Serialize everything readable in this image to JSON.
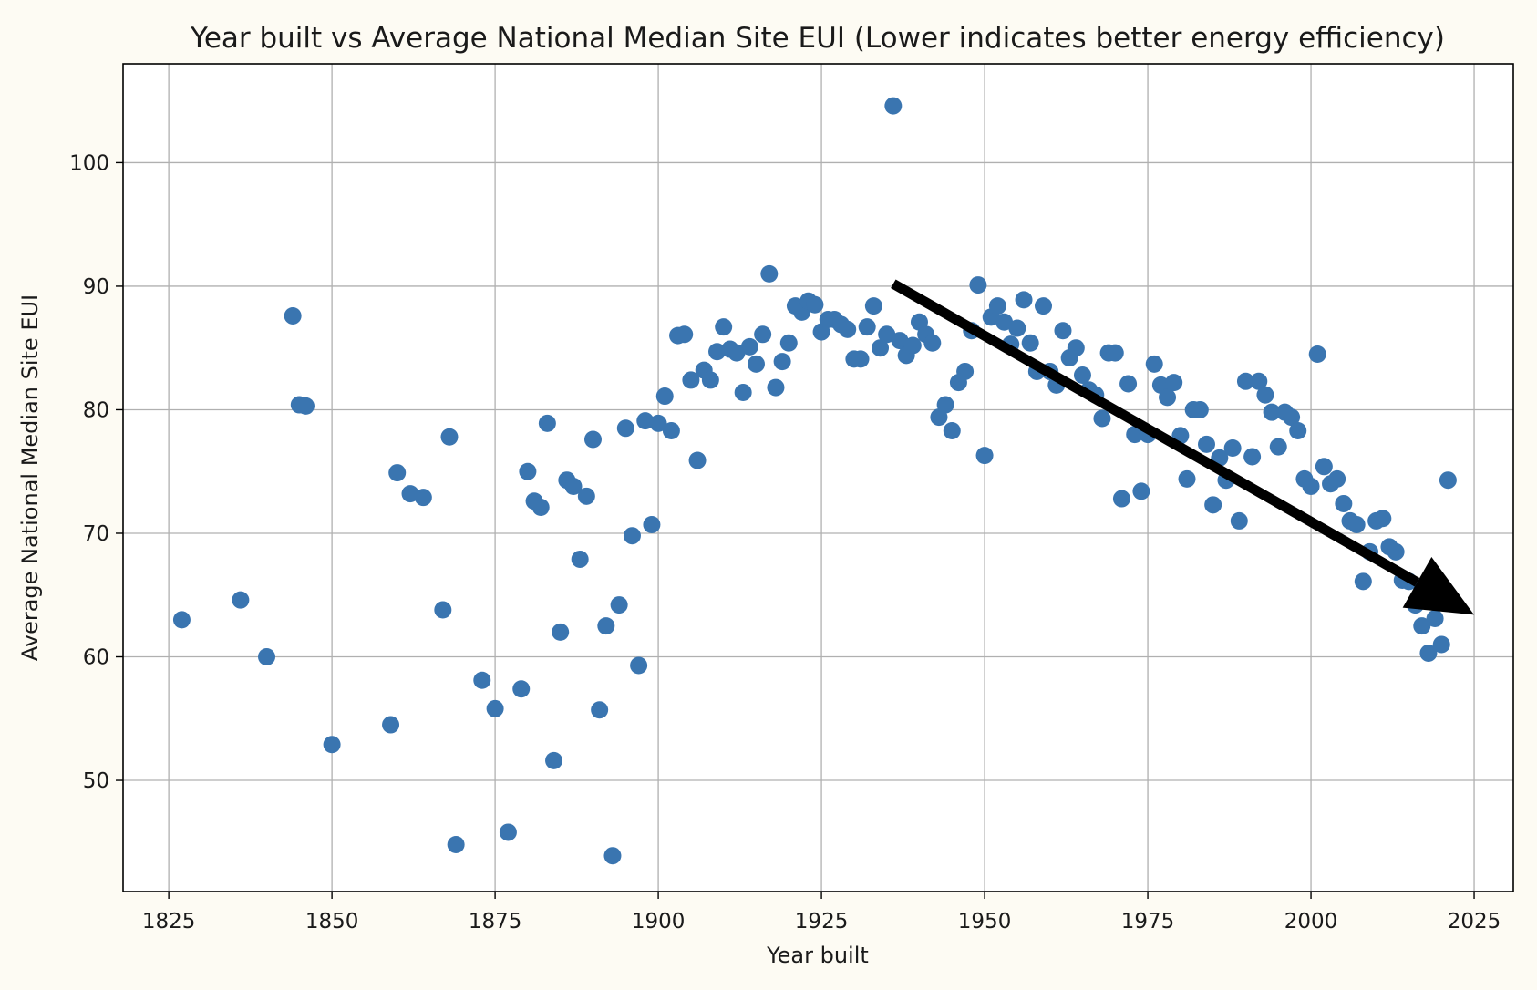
{
  "chart_data": {
    "type": "scatter",
    "title": "Year built vs Average National Median Site EUI (Lower indicates better energy efficiency)",
    "xlabel": "Year built",
    "ylabel": "Average National Median Site EUI",
    "xlim": [
      1818,
      2031
    ],
    "ylim": [
      41,
      108
    ],
    "xticks": [
      1825,
      1850,
      1875,
      1900,
      1925,
      1950,
      1975,
      2000,
      2025
    ],
    "yticks": [
      50,
      60,
      70,
      80,
      90,
      100
    ],
    "grid": true,
    "marker_color": "#3a75b0",
    "annotation": {
      "type": "trend-arrow",
      "color": "#000000",
      "from": [
        1936,
        90.2
      ],
      "to": [
        2025,
        63.4
      ]
    },
    "points": [
      [
        1827,
        63.0
      ],
      [
        1836,
        64.6
      ],
      [
        1840,
        60.0
      ],
      [
        1844,
        87.6
      ],
      [
        1845,
        80.4
      ],
      [
        1846,
        80.3
      ],
      [
        1850,
        52.9
      ],
      [
        1859,
        54.5
      ],
      [
        1860,
        74.9
      ],
      [
        1862,
        73.2
      ],
      [
        1864,
        72.9
      ],
      [
        1867,
        63.8
      ],
      [
        1868,
        77.8
      ],
      [
        1869,
        44.8
      ],
      [
        1873,
        58.1
      ],
      [
        1875,
        55.8
      ],
      [
        1877,
        45.8
      ],
      [
        1879,
        57.4
      ],
      [
        1880,
        75.0
      ],
      [
        1881,
        72.6
      ],
      [
        1882,
        72.1
      ],
      [
        1883,
        78.9
      ],
      [
        1884,
        51.6
      ],
      [
        1885,
        62.0
      ],
      [
        1886,
        74.3
      ],
      [
        1887,
        73.8
      ],
      [
        1888,
        67.9
      ],
      [
        1889,
        73.0
      ],
      [
        1890,
        77.6
      ],
      [
        1891,
        55.7
      ],
      [
        1892,
        62.5
      ],
      [
        1893,
        43.9
      ],
      [
        1894,
        64.2
      ],
      [
        1895,
        78.5
      ],
      [
        1896,
        69.8
      ],
      [
        1897,
        59.3
      ],
      [
        1898,
        79.1
      ],
      [
        1899,
        70.7
      ],
      [
        1900,
        78.9
      ],
      [
        1901,
        81.1
      ],
      [
        1902,
        78.3
      ],
      [
        1903,
        86.0
      ],
      [
        1904,
        86.1
      ],
      [
        1905,
        82.4
      ],
      [
        1906,
        75.9
      ],
      [
        1907,
        83.2
      ],
      [
        1908,
        82.4
      ],
      [
        1909,
        84.7
      ],
      [
        1910,
        86.7
      ],
      [
        1911,
        84.9
      ],
      [
        1912,
        84.6
      ],
      [
        1913,
        81.4
      ],
      [
        1914,
        85.1
      ],
      [
        1915,
        83.7
      ],
      [
        1916,
        86.1
      ],
      [
        1917,
        91.0
      ],
      [
        1918,
        81.8
      ],
      [
        1919,
        83.9
      ],
      [
        1920,
        85.4
      ],
      [
        1921,
        88.4
      ],
      [
        1922,
        87.9
      ],
      [
        1923,
        88.8
      ],
      [
        1924,
        88.5
      ],
      [
        1925,
        86.3
      ],
      [
        1926,
        87.3
      ],
      [
        1927,
        87.3
      ],
      [
        1928,
        86.9
      ],
      [
        1929,
        86.5
      ],
      [
        1930,
        84.1
      ],
      [
        1931,
        84.1
      ],
      [
        1932,
        86.7
      ],
      [
        1933,
        88.4
      ],
      [
        1934,
        85.0
      ],
      [
        1935,
        86.1
      ],
      [
        1936,
        104.6
      ],
      [
        1937,
        85.6
      ],
      [
        1938,
        84.4
      ],
      [
        1939,
        85.2
      ],
      [
        1940,
        87.1
      ],
      [
        1941,
        86.1
      ],
      [
        1942,
        85.4
      ],
      [
        1943,
        79.4
      ],
      [
        1944,
        80.4
      ],
      [
        1945,
        78.3
      ],
      [
        1946,
        82.2
      ],
      [
        1947,
        83.1
      ],
      [
        1948,
        86.4
      ],
      [
        1949,
        90.1
      ],
      [
        1950,
        76.3
      ],
      [
        1951,
        87.5
      ],
      [
        1952,
        88.4
      ],
      [
        1953,
        87.1
      ],
      [
        1954,
        85.3
      ],
      [
        1955,
        86.6
      ],
      [
        1956,
        88.9
      ],
      [
        1957,
        85.4
      ],
      [
        1958,
        83.1
      ],
      [
        1959,
        88.4
      ],
      [
        1960,
        83.1
      ],
      [
        1961,
        82.0
      ],
      [
        1962,
        86.4
      ],
      [
        1963,
        84.2
      ],
      [
        1964,
        85.0
      ],
      [
        1965,
        82.8
      ],
      [
        1966,
        81.6
      ],
      [
        1967,
        81.2
      ],
      [
        1968,
        79.3
      ],
      [
        1969,
        84.6
      ],
      [
        1970,
        84.6
      ],
      [
        1971,
        72.8
      ],
      [
        1972,
        82.1
      ],
      [
        1973,
        78.0
      ],
      [
        1974,
        73.4
      ],
      [
        1975,
        78.0
      ],
      [
        1976,
        83.7
      ],
      [
        1977,
        82.0
      ],
      [
        1978,
        81.0
      ],
      [
        1979,
        82.2
      ],
      [
        1980,
        77.9
      ],
      [
        1981,
        74.4
      ],
      [
        1982,
        80.0
      ],
      [
        1983,
        80.0
      ],
      [
        1984,
        77.2
      ],
      [
        1985,
        72.3
      ],
      [
        1986,
        76.1
      ],
      [
        1987,
        74.3
      ],
      [
        1988,
        76.9
      ],
      [
        1989,
        71.0
      ],
      [
        1990,
        82.3
      ],
      [
        1991,
        76.2
      ],
      [
        1992,
        82.3
      ],
      [
        1993,
        81.2
      ],
      [
        1994,
        79.8
      ],
      [
        1995,
        77.0
      ],
      [
        1996,
        79.8
      ],
      [
        1997,
        79.4
      ],
      [
        1998,
        78.3
      ],
      [
        1999,
        74.4
      ],
      [
        2000,
        73.8
      ],
      [
        2001,
        84.5
      ],
      [
        2002,
        75.4
      ],
      [
        2003,
        74.0
      ],
      [
        2004,
        74.4
      ],
      [
        2005,
        72.4
      ],
      [
        2006,
        71.0
      ],
      [
        2007,
        70.7
      ],
      [
        2008,
        66.1
      ],
      [
        2009,
        68.5
      ],
      [
        2010,
        71.0
      ],
      [
        2011,
        71.2
      ],
      [
        2012,
        68.9
      ],
      [
        2013,
        68.5
      ],
      [
        2014,
        66.2
      ],
      [
        2015,
        66.1
      ],
      [
        2016,
        64.2
      ],
      [
        2017,
        62.5
      ],
      [
        2018,
        60.3
      ],
      [
        2019,
        63.1
      ],
      [
        2020,
        61.0
      ],
      [
        2021,
        74.3
      ]
    ]
  }
}
